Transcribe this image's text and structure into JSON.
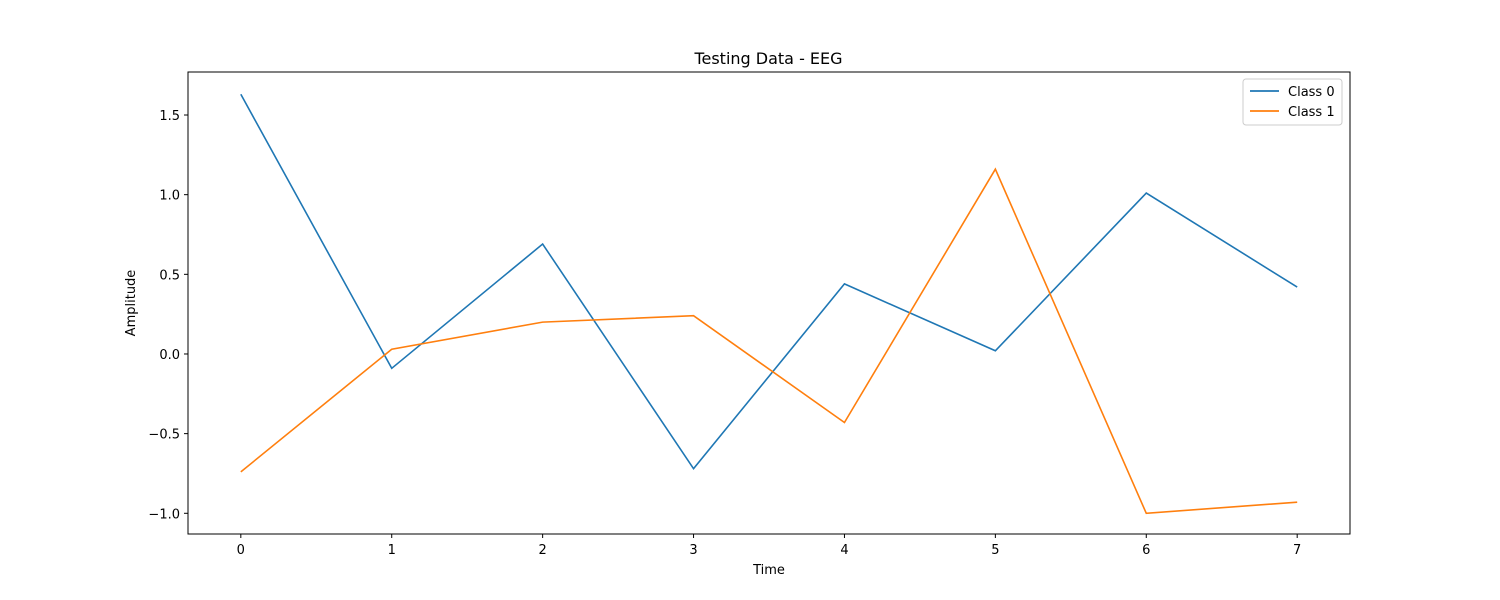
{
  "chart_data": {
    "type": "line",
    "title": "Testing Data - EEG",
    "xlabel": "Time",
    "ylabel": "Amplitude",
    "x": [
      0,
      1,
      2,
      3,
      4,
      5,
      6,
      7
    ],
    "xlim": [
      -0.35,
      7.35
    ],
    "ylim": [
      -1.13,
      1.77
    ],
    "xticks": [
      0,
      1,
      2,
      3,
      4,
      5,
      6,
      7
    ],
    "yticks": [
      -1.0,
      -0.5,
      0.0,
      0.5,
      1.0,
      1.5
    ],
    "ytick_labels": [
      "−1.0",
      "−0.5",
      "0.0",
      "0.5",
      "1.0",
      "1.5"
    ],
    "grid": false,
    "legend_position": "top-right",
    "series": [
      {
        "name": "Class 0",
        "color": "#1f77b4",
        "values": [
          1.63,
          -0.09,
          0.69,
          -0.72,
          0.44,
          0.02,
          1.01,
          0.42
        ]
      },
      {
        "name": "Class 1",
        "color": "#ff7f0e",
        "values": [
          -0.74,
          0.03,
          0.2,
          0.24,
          -0.43,
          1.16,
          -1.0,
          -0.93
        ]
      }
    ]
  }
}
